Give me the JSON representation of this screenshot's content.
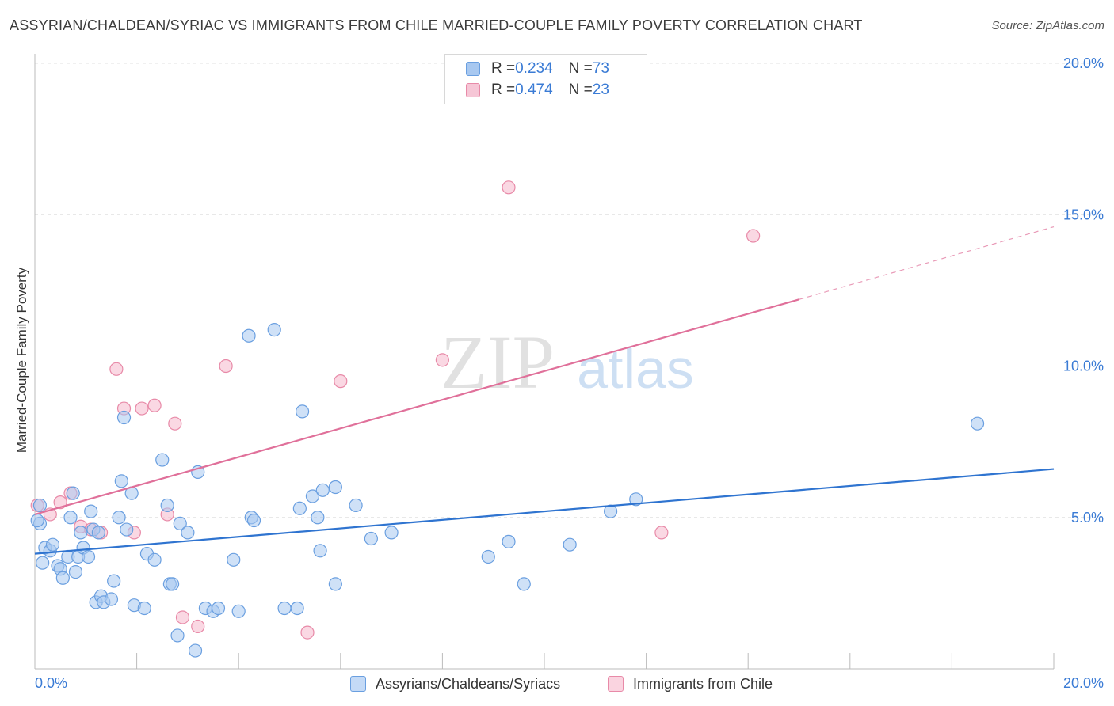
{
  "title": "ASSYRIAN/CHALDEAN/SYRIAC VS IMMIGRANTS FROM CHILE MARRIED-COUPLE FAMILY POVERTY CORRELATION CHART",
  "source": "Source: ZipAtlas.com",
  "watermark": {
    "zip": "ZIP",
    "atlas": "atlas"
  },
  "legend": {
    "rows": [
      {
        "r_label": "R = ",
        "r_value": "0.234",
        "n_label": "N = ",
        "n_value": "73"
      },
      {
        "r_label": "R = ",
        "r_value": "0.474",
        "n_label": "N = ",
        "n_value": "23"
      }
    ]
  },
  "bottom_legend": {
    "series1": "Assyrians/Chaldeans/Syriacs",
    "series2": "Immigrants from Chile"
  },
  "colors": {
    "series1_fill": "#a8c8f0",
    "series1_stroke": "#6a9fe0",
    "series1_line": "#2f74d0",
    "series2_fill": "#f6b8cc",
    "series2_stroke": "#e88aa8",
    "series2_line": "#e0709a",
    "axis_text": "#3a7bd5",
    "grid": "#e0e0e0"
  },
  "chart_data": {
    "type": "scatter",
    "title": "ASSYRIAN/CHALDEAN/SYRIAC VS IMMIGRANTS FROM CHILE MARRIED-COUPLE FAMILY POVERTY CORRELATION CHART",
    "xlabel": "",
    "ylabel": "Married-Couple Family Poverty",
    "xlim": [
      0,
      20
    ],
    "ylim": [
      0,
      20
    ],
    "x_tick_labels": [
      "0.0%",
      "20.0%"
    ],
    "y_tick_labels": [
      "5.0%",
      "10.0%",
      "15.0%",
      "20.0%"
    ],
    "y_ticks": [
      5,
      10,
      15,
      20
    ],
    "grid": true,
    "legend_position": "top-center",
    "series": [
      {
        "name": "Assyrians/Chaldeans/Syriacs",
        "R": 0.234,
        "N": 73,
        "trend": {
          "x": [
            0,
            20
          ],
          "y": [
            3.8,
            6.6
          ]
        },
        "points": [
          [
            0.1,
            5.4
          ],
          [
            0.1,
            4.8
          ],
          [
            0.15,
            3.5
          ],
          [
            0.2,
            4.0
          ],
          [
            0.3,
            3.9
          ],
          [
            0.35,
            4.1
          ],
          [
            0.45,
            3.4
          ],
          [
            0.5,
            3.3
          ],
          [
            0.55,
            3.0
          ],
          [
            0.65,
            3.7
          ],
          [
            0.7,
            5.0
          ],
          [
            0.75,
            5.8
          ],
          [
            0.8,
            3.2
          ],
          [
            0.85,
            3.7
          ],
          [
            0.9,
            4.5
          ],
          [
            0.95,
            4.0
          ],
          [
            1.05,
            3.7
          ],
          [
            1.1,
            5.2
          ],
          [
            1.15,
            4.6
          ],
          [
            1.25,
            4.5
          ],
          [
            1.2,
            2.2
          ],
          [
            1.3,
            2.4
          ],
          [
            1.35,
            2.2
          ],
          [
            1.5,
            2.3
          ],
          [
            1.55,
            2.9
          ],
          [
            1.65,
            5.0
          ],
          [
            1.7,
            6.2
          ],
          [
            1.75,
            8.3
          ],
          [
            1.8,
            4.6
          ],
          [
            1.9,
            5.8
          ],
          [
            1.95,
            2.1
          ],
          [
            2.15,
            2.0
          ],
          [
            2.2,
            3.8
          ],
          [
            2.35,
            3.6
          ],
          [
            2.5,
            6.9
          ],
          [
            2.6,
            5.4
          ],
          [
            2.65,
            2.8
          ],
          [
            2.7,
            2.8
          ],
          [
            2.8,
            1.1
          ],
          [
            2.85,
            4.8
          ],
          [
            3.0,
            4.5
          ],
          [
            3.15,
            0.6
          ],
          [
            3.2,
            6.5
          ],
          [
            3.35,
            2.0
          ],
          [
            3.5,
            1.9
          ],
          [
            3.6,
            2.0
          ],
          [
            3.9,
            3.6
          ],
          [
            4.0,
            1.9
          ],
          [
            4.2,
            11.0
          ],
          [
            4.25,
            5.0
          ],
          [
            4.3,
            4.9
          ],
          [
            4.7,
            11.2
          ],
          [
            4.9,
            2.0
          ],
          [
            5.15,
            2.0
          ],
          [
            5.2,
            5.3
          ],
          [
            5.25,
            8.5
          ],
          [
            5.45,
            5.7
          ],
          [
            5.55,
            5.0
          ],
          [
            5.6,
            3.9
          ],
          [
            5.65,
            5.9
          ],
          [
            5.9,
            2.8
          ],
          [
            5.9,
            6.0
          ],
          [
            6.3,
            5.4
          ],
          [
            6.6,
            4.3
          ],
          [
            7.0,
            4.5
          ],
          [
            8.9,
            3.7
          ],
          [
            9.3,
            4.2
          ],
          [
            9.6,
            2.8
          ],
          [
            10.5,
            4.1
          ],
          [
            11.3,
            5.2
          ],
          [
            11.8,
            5.6
          ],
          [
            18.5,
            8.1
          ],
          [
            0.05,
            4.9
          ]
        ]
      },
      {
        "name": "Immigrants from Chile",
        "R": 0.474,
        "N": 23,
        "trend": {
          "x": [
            0,
            15
          ],
          "y": [
            5.1,
            12.2
          ],
          "dashed_to": [
            20,
            14.6
          ]
        },
        "points": [
          [
            0.05,
            5.4
          ],
          [
            0.3,
            5.1
          ],
          [
            0.5,
            5.5
          ],
          [
            0.7,
            5.8
          ],
          [
            0.9,
            4.7
          ],
          [
            1.1,
            4.6
          ],
          [
            1.3,
            4.5
          ],
          [
            1.6,
            9.9
          ],
          [
            1.75,
            8.6
          ],
          [
            1.95,
            4.5
          ],
          [
            2.1,
            8.6
          ],
          [
            2.35,
            8.7
          ],
          [
            2.6,
            5.1
          ],
          [
            2.75,
            8.1
          ],
          [
            2.9,
            1.7
          ],
          [
            3.2,
            1.4
          ],
          [
            3.75,
            10.0
          ],
          [
            5.35,
            1.2
          ],
          [
            6.0,
            9.5
          ],
          [
            8.0,
            10.2
          ],
          [
            9.3,
            15.9
          ],
          [
            12.3,
            4.5
          ],
          [
            14.1,
            14.3
          ]
        ]
      }
    ]
  }
}
